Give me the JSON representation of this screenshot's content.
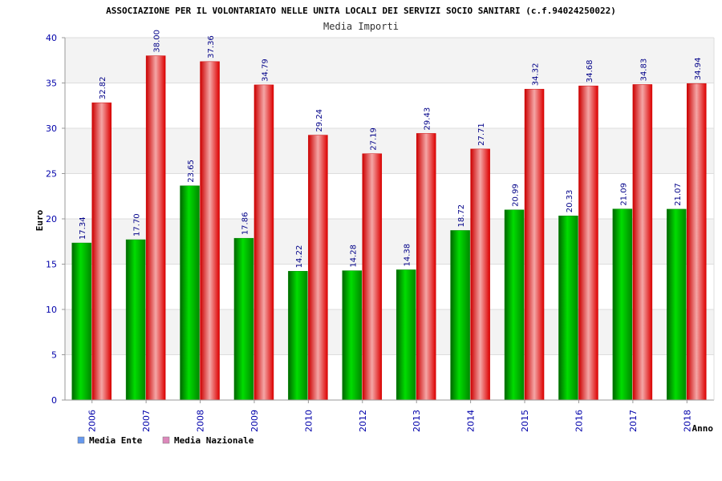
{
  "chart_data": {
    "type": "bar",
    "title": "ASSOCIAZIONE PER IL VOLONTARIATO NELLE UNITA LOCALI DEI SERVIZI SOCIO SANITARI (c.f.94024250022)",
    "subtitle": "Media Importi",
    "xlabel": "Anno",
    "ylabel": "Euro",
    "ylim": [
      0,
      40
    ],
    "yticks": [
      0,
      5,
      10,
      15,
      20,
      25,
      30,
      35,
      40
    ],
    "ytick_labels": [
      "0",
      "5",
      "10",
      "15",
      "20",
      "25",
      "30",
      "35",
      "40"
    ],
    "categories": [
      "2006",
      "2007",
      "2008",
      "2009",
      "2010",
      "2012",
      "2013",
      "2014",
      "2015",
      "2016",
      "2017",
      "2018"
    ],
    "series": [
      {
        "name": "Media Ente",
        "color": "#00bb00",
        "legend_color": "#6699ee",
        "values": [
          17.34,
          17.7,
          23.65,
          17.86,
          14.22,
          14.28,
          14.38,
          18.72,
          20.99,
          20.33,
          21.09,
          21.07
        ],
        "labels": [
          "17.34",
          "17.70",
          "23.65",
          "17.86",
          "14.22",
          "14.28",
          "14.38",
          "18.72",
          "20.99",
          "20.33",
          "21.09",
          "21.07"
        ]
      },
      {
        "name": "Media Nazionale",
        "color": "#ee1111",
        "legend_color": "#dd88bb",
        "values": [
          32.82,
          38.0,
          37.36,
          34.79,
          29.24,
          27.19,
          29.43,
          27.71,
          34.32,
          34.68,
          34.83,
          34.94
        ],
        "labels": [
          "32.82",
          "38.00",
          "37.36",
          "34.79",
          "29.24",
          "27.19",
          "29.43",
          "27.71",
          "34.32",
          "34.68",
          "34.83",
          "34.94"
        ]
      }
    ],
    "grid": true,
    "legend_position": "bottom-left"
  }
}
